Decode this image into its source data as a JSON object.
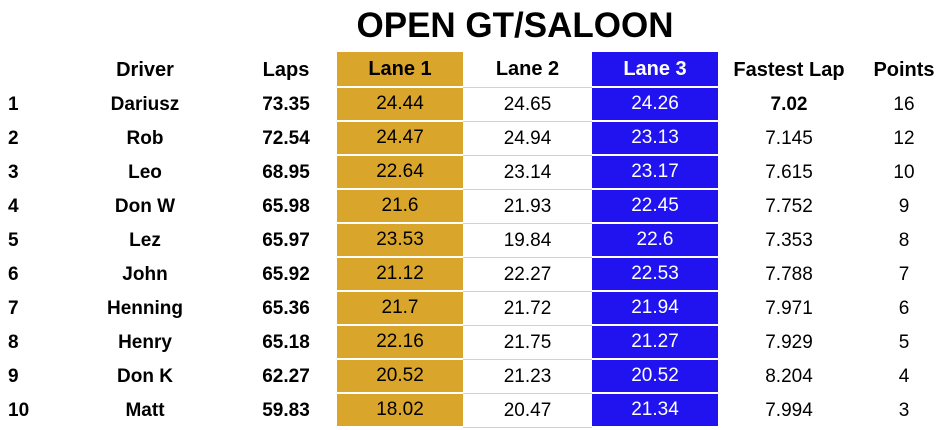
{
  "title": "OPEN GT/SALOON",
  "colors": {
    "lane1_bg": "#D9A62B",
    "lane3_bg": "#2013F0",
    "gridline": "#D2D2D2",
    "text": "#000000"
  },
  "table": {
    "headers": {
      "position": "",
      "driver": "Driver",
      "laps": "Laps",
      "lane1": "Lane 1",
      "lane2": "Lane 2",
      "lane3": "Lane 3",
      "fastest_lap": "Fastest Lap",
      "points": "Points"
    },
    "rows": [
      {
        "pos": "1",
        "driver": "Dariusz",
        "laps": "73.35",
        "lane1": "24.44",
        "lane2": "24.65",
        "lane3": "24.26",
        "fastest_lap": "7.02",
        "points": "16",
        "is_overall_fastest": true
      },
      {
        "pos": "2",
        "driver": "Rob",
        "laps": "72.54",
        "lane1": "24.47",
        "lane2": "24.94",
        "lane3": "23.13",
        "fastest_lap": "7.145",
        "points": "12",
        "is_overall_fastest": false
      },
      {
        "pos": "3",
        "driver": "Leo",
        "laps": "68.95",
        "lane1": "22.64",
        "lane2": "23.14",
        "lane3": "23.17",
        "fastest_lap": "7.615",
        "points": "10",
        "is_overall_fastest": false
      },
      {
        "pos": "4",
        "driver": "Don W",
        "laps": "65.98",
        "lane1": "21.6",
        "lane2": "21.93",
        "lane3": "22.45",
        "fastest_lap": "7.752",
        "points": "9",
        "is_overall_fastest": false
      },
      {
        "pos": "5",
        "driver": "Lez",
        "laps": "65.97",
        "lane1": "23.53",
        "lane2": "19.84",
        "lane3": "22.6",
        "fastest_lap": "7.353",
        "points": "8",
        "is_overall_fastest": false
      },
      {
        "pos": "6",
        "driver": "John",
        "laps": "65.92",
        "lane1": "21.12",
        "lane2": "22.27",
        "lane3": "22.53",
        "fastest_lap": "7.788",
        "points": "7",
        "is_overall_fastest": false
      },
      {
        "pos": "7",
        "driver": "Henning",
        "laps": "65.36",
        "lane1": "21.7",
        "lane2": "21.72",
        "lane3": "21.94",
        "fastest_lap": "7.971",
        "points": "6",
        "is_overall_fastest": false
      },
      {
        "pos": "8",
        "driver": "Henry",
        "laps": "65.18",
        "lane1": "22.16",
        "lane2": "21.75",
        "lane3": "21.27",
        "fastest_lap": "7.929",
        "points": "5",
        "is_overall_fastest": false
      },
      {
        "pos": "9",
        "driver": "Don K",
        "laps": "62.27",
        "lane1": "20.52",
        "lane2": "21.23",
        "lane3": "20.52",
        "fastest_lap": "8.204",
        "points": "4",
        "is_overall_fastest": false
      },
      {
        "pos": "10",
        "driver": "Matt",
        "laps": "59.83",
        "lane1": "18.02",
        "lane2": "20.47",
        "lane3": "21.34",
        "fastest_lap": "7.994",
        "points": "3",
        "is_overall_fastest": false
      }
    ]
  }
}
